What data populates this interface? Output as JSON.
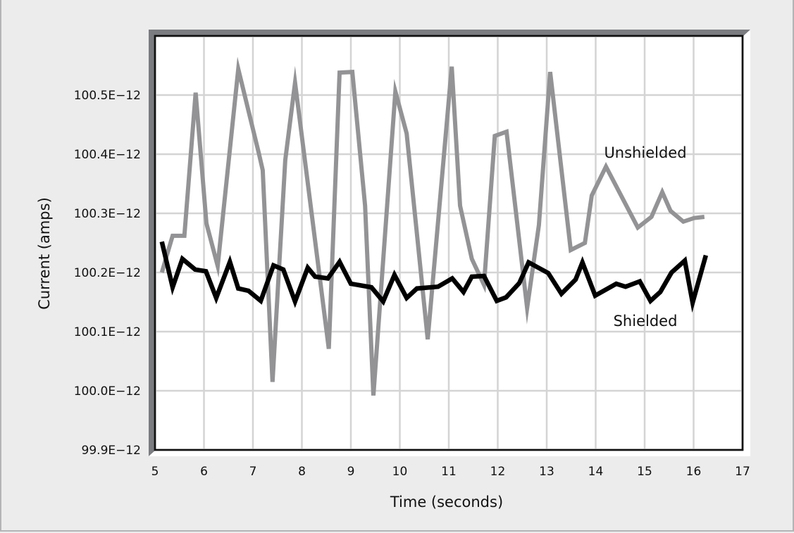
{
  "chart_data": {
    "type": "line",
    "title": "",
    "xlabel": "Time (seconds)",
    "ylabel": "Current (amps)",
    "xlim": [
      5,
      17
    ],
    "ylim": [
      99.9,
      100.6
    ],
    "y_unit_suffix": "E−12",
    "grid": true,
    "legend": "inline labels",
    "x_ticks": [
      "5",
      "6",
      "7",
      "8",
      "9",
      "10",
      "11",
      "12",
      "13",
      "14",
      "15",
      "16",
      "17"
    ],
    "y_ticks": [
      "100.5E−12",
      "100.4E−12",
      "100.3E−12",
      "100.2E−12",
      "100.1E−12",
      "100.0E−12",
      "99.9E−12"
    ],
    "series": [
      {
        "name": "Unshielded",
        "color": "#939396",
        "label_pos": {
          "x": 14.2,
          "y": 100.4
        },
        "x": [
          5.14,
          5.36,
          5.6,
          5.83,
          6.05,
          6.28,
          6.7,
          7.12,
          7.2,
          7.4,
          7.66,
          7.86,
          8.55,
          8.77,
          9.03,
          9.29,
          9.46,
          9.91,
          10.14,
          10.57,
          11.06,
          11.23,
          11.47,
          11.72,
          11.94,
          12.18,
          12.6,
          12.84,
          13.07,
          13.49,
          13.78,
          13.92,
          14.21,
          14.86,
          15.14,
          15.36,
          15.53,
          15.79,
          16.01,
          16.22
        ],
        "values": [
          100.2,
          100.262,
          100.262,
          100.504,
          100.283,
          100.211,
          100.544,
          100.402,
          100.373,
          100.015,
          100.39,
          100.521,
          100.071,
          100.538,
          100.539,
          100.313,
          99.992,
          100.506,
          100.435,
          100.087,
          100.548,
          100.313,
          100.223,
          100.179,
          100.431,
          100.438,
          100.14,
          100.28,
          100.539,
          100.238,
          100.25,
          100.33,
          100.379,
          100.276,
          100.294,
          100.336,
          100.304,
          100.286,
          100.292,
          100.294
        ]
      },
      {
        "name": "Shielded",
        "color": "#000000",
        "label_pos": {
          "x": 14.33,
          "y": 100.114
        },
        "x": [
          5.14,
          5.36,
          5.56,
          5.82,
          6.04,
          6.25,
          6.53,
          6.7,
          6.91,
          7.16,
          7.42,
          7.62,
          7.86,
          8.12,
          8.27,
          8.53,
          8.77,
          9.0,
          9.42,
          9.66,
          9.89,
          10.14,
          10.35,
          10.78,
          11.07,
          11.3,
          11.47,
          11.72,
          11.98,
          12.17,
          12.44,
          12.63,
          13.03,
          13.3,
          13.59,
          13.73,
          13.99,
          14.42,
          14.61,
          14.9,
          15.12,
          15.32,
          15.55,
          15.82,
          15.98,
          16.25
        ],
        "values": [
          100.252,
          100.175,
          100.223,
          100.205,
          100.202,
          100.157,
          100.218,
          100.173,
          100.169,
          100.152,
          100.212,
          100.205,
          100.151,
          100.208,
          100.193,
          100.19,
          100.218,
          100.181,
          100.175,
          100.151,
          100.196,
          100.157,
          100.173,
          100.176,
          100.19,
          100.167,
          100.193,
          100.194,
          100.152,
          100.158,
          100.182,
          100.217,
          100.199,
          100.164,
          100.188,
          100.217,
          100.161,
          100.181,
          100.176,
          100.185,
          100.152,
          100.167,
          100.2,
          100.22,
          100.149,
          100.229
        ]
      }
    ]
  },
  "colors": {
    "background": "#ececec",
    "plot_background": "#ffffff",
    "frame_shadow": "#7b7c80",
    "grid": "#d4d4d4"
  }
}
